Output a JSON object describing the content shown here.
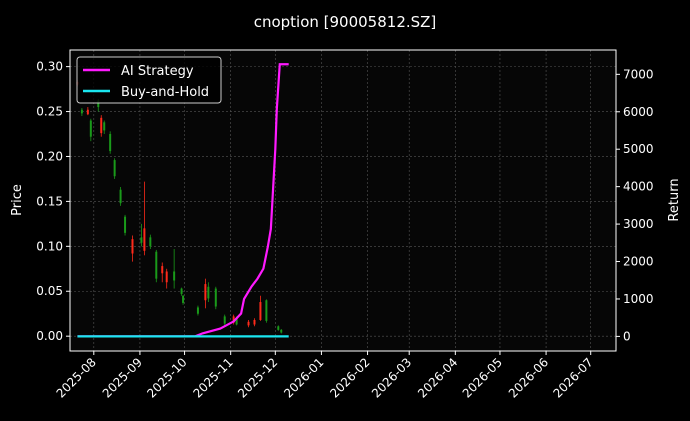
{
  "chart_data": {
    "type": "line",
    "title": "cnoption [90005812.SZ]",
    "ylabel_left": "Price",
    "ylabel_right": "Return",
    "xlim": [
      "2025-07-16",
      "2026-07-18"
    ],
    "ylim_left": [
      -0.0165,
      0.3185
    ],
    "ylim_right": [
      -390,
      7650
    ],
    "x_ticks": [
      "2025-08",
      "2025-09",
      "2025-10",
      "2025-11",
      "2025-12",
      "2026-01",
      "2026-02",
      "2026-03",
      "2026-04",
      "2026-05",
      "2026-06",
      "2026-07"
    ],
    "y_ticks_left": [
      "0.00",
      "0.05",
      "0.10",
      "0.15",
      "0.20",
      "0.25",
      "0.30"
    ],
    "y_ticks_right": [
      "0",
      "1000",
      "2000",
      "3000",
      "4000",
      "5000",
      "6000",
      "7000"
    ],
    "grid": true,
    "legend_placement": "top-left",
    "colors": {
      "background": "#000000",
      "axes": "#060606",
      "up": "#ff2a1a",
      "down": "#1a9a1a",
      "strategy": "#ff1aff",
      "buyhold": "#1ae6f0",
      "grid": "#555555"
    },
    "candles_ohlc": [
      [
        "2025-07-21",
        0.28,
        0.285,
        0.278,
        0.283
      ],
      [
        "2025-07-24",
        0.252,
        0.254,
        0.245,
        0.248
      ],
      [
        "2025-07-28",
        0.247,
        0.255,
        0.246,
        0.252
      ],
      [
        "2025-07-30",
        0.24,
        0.242,
        0.217,
        0.222
      ],
      [
        "2025-08-04",
        0.262,
        0.264,
        0.25,
        0.255
      ],
      [
        "2025-08-06",
        0.226,
        0.246,
        0.222,
        0.243
      ],
      [
        "2025-08-08",
        0.238,
        0.24,
        0.225,
        0.229
      ],
      [
        "2025-08-12",
        0.225,
        0.228,
        0.203,
        0.206
      ],
      [
        "2025-08-15",
        0.196,
        0.198,
        0.175,
        0.178
      ],
      [
        "2025-08-19",
        0.163,
        0.166,
        0.145,
        0.148
      ],
      [
        "2025-08-22",
        0.133,
        0.135,
        0.112,
        0.115
      ],
      [
        "2025-08-27",
        0.092,
        0.112,
        0.083,
        0.108
      ],
      [
        "2025-09-02",
        0.11,
        0.125,
        0.1,
        0.104
      ],
      [
        "2025-09-04",
        0.095,
        0.172,
        0.09,
        0.12
      ],
      [
        "2025-09-08",
        0.11,
        0.113,
        0.097,
        0.1
      ],
      [
        "2025-09-12",
        0.094,
        0.096,
        0.06,
        0.064
      ],
      [
        "2025-09-16",
        0.07,
        0.082,
        0.06,
        0.078
      ],
      [
        "2025-09-19",
        0.06,
        0.075,
        0.053,
        0.072
      ],
      [
        "2025-09-24",
        0.072,
        0.097,
        0.053,
        0.062
      ],
      [
        "2025-09-29",
        0.053,
        0.054,
        0.045,
        0.047
      ],
      [
        "2025-09-30",
        0.045,
        0.046,
        0.035,
        0.037
      ],
      [
        "2025-10-10",
        0.032,
        0.034,
        0.023,
        0.025
      ],
      [
        "2025-10-15",
        0.04,
        0.064,
        0.031,
        0.058
      ],
      [
        "2025-10-17",
        0.055,
        0.06,
        0.038,
        0.042
      ],
      [
        "2025-10-22",
        0.053,
        0.055,
        0.03,
        0.033
      ],
      [
        "2025-10-28",
        0.022,
        0.024,
        0.012,
        0.014
      ],
      [
        "2025-11-03",
        0.015,
        0.024,
        0.013,
        0.022
      ],
      [
        "2025-11-05",
        0.02,
        0.022,
        0.012,
        0.013
      ],
      [
        "2025-11-13",
        0.012,
        0.018,
        0.01,
        0.016
      ],
      [
        "2025-11-17",
        0.013,
        0.02,
        0.011,
        0.018
      ],
      [
        "2025-11-21",
        0.018,
        0.045,
        0.017,
        0.038
      ],
      [
        "2025-11-25",
        0.04,
        0.041,
        0.015,
        0.017
      ],
      [
        "2025-12-03",
        0.011,
        0.012,
        0.006,
        0.007
      ],
      [
        "2025-12-05",
        0.007,
        0.008,
        0.003,
        0.004
      ]
    ],
    "series": [
      {
        "name": "AI Strategy",
        "axis": "right",
        "x": [
          "2025-07-21",
          "2025-10-08",
          "2025-10-13",
          "2025-10-25",
          "2025-11-03",
          "2025-11-08",
          "2025-11-10",
          "2025-11-15",
          "2025-11-19",
          "2025-11-23",
          "2025-11-26",
          "2025-11-28",
          "2025-12-01",
          "2025-12-02",
          "2025-12-04",
          "2025-12-10"
        ],
        "values": [
          0,
          0,
          80,
          210,
          400,
          610,
          1000,
          1330,
          1540,
          1810,
          2400,
          2870,
          5000,
          6070,
          7270,
          7270
        ]
      },
      {
        "name": "Buy-and-Hold",
        "axis": "right",
        "x": [
          "2025-07-21",
          "2025-12-10"
        ],
        "values": [
          0,
          0
        ]
      }
    ]
  }
}
